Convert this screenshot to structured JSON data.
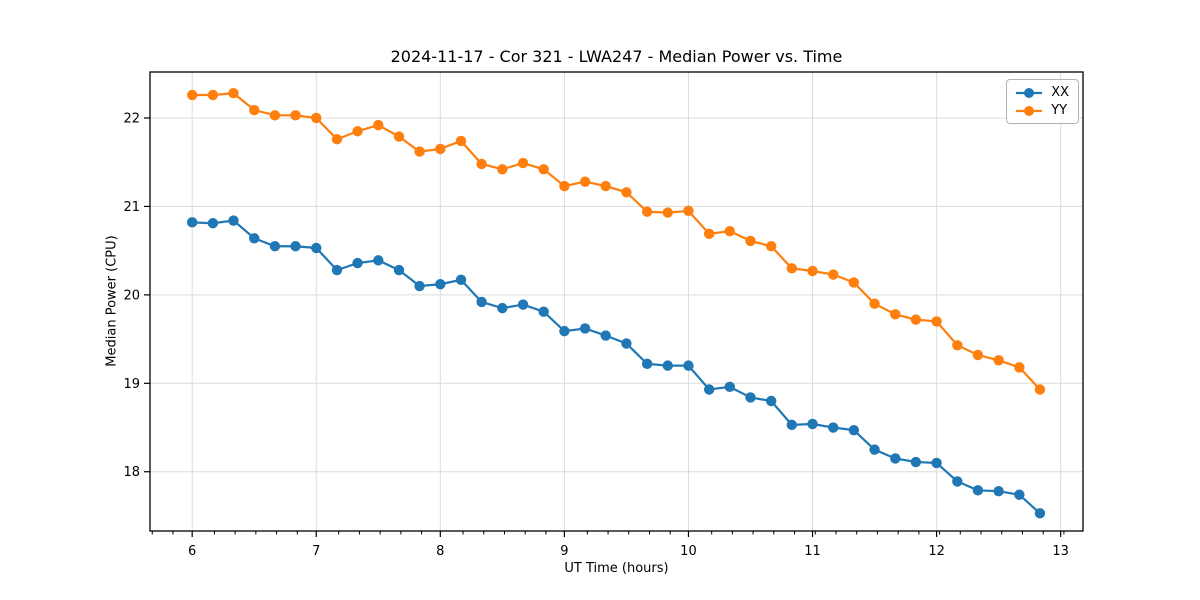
{
  "chart_data": {
    "type": "line",
    "title": "2024-11-17 - Cor 321 - LWA247 - Median Power vs. Time",
    "xlabel": "UT Time (hours)",
    "ylabel": "Median Power (CPU)",
    "xlim": [
      5.66,
      13.18
    ],
    "ylim": [
      17.33,
      22.52
    ],
    "xticks": [
      6,
      7,
      8,
      9,
      10,
      11,
      12,
      13
    ],
    "yticks": [
      18,
      19,
      20,
      21,
      22
    ],
    "x_minor_tick_step": 0.167,
    "grid": true,
    "grid_color": "#dcdcdc",
    "axis_color": "#000000",
    "legend_position": "upper right",
    "x": [
      6.0,
      6.167,
      6.333,
      6.5,
      6.667,
      6.833,
      7.0,
      7.167,
      7.333,
      7.5,
      7.667,
      7.833,
      8.0,
      8.167,
      8.333,
      8.5,
      8.667,
      8.833,
      9.0,
      9.167,
      9.333,
      9.5,
      9.667,
      9.833,
      10.0,
      10.167,
      10.333,
      10.5,
      10.667,
      10.833,
      11.0,
      11.167,
      11.333,
      11.5,
      11.667,
      11.833,
      12.0,
      12.167,
      12.333,
      12.5,
      12.667,
      12.833
    ],
    "series": [
      {
        "name": "XX",
        "color": "#1f77b4",
        "values": [
          20.82,
          20.81,
          20.84,
          20.64,
          20.55,
          20.55,
          20.53,
          20.28,
          20.36,
          20.39,
          20.28,
          20.1,
          20.12,
          20.17,
          19.92,
          19.85,
          19.89,
          19.81,
          19.59,
          19.62,
          19.54,
          19.45,
          19.22,
          19.2,
          19.2,
          18.93,
          18.96,
          18.84,
          18.8,
          18.53,
          18.54,
          18.5,
          18.47,
          18.25,
          18.15,
          18.11,
          18.1,
          17.89,
          17.79,
          17.78,
          17.74,
          17.53
        ]
      },
      {
        "name": "YY",
        "color": "#ff7f0e",
        "values": [
          22.26,
          22.26,
          22.28,
          22.09,
          22.03,
          22.03,
          22.0,
          21.76,
          21.85,
          21.92,
          21.79,
          21.62,
          21.65,
          21.74,
          21.48,
          21.42,
          21.49,
          21.42,
          21.23,
          21.28,
          21.23,
          21.16,
          20.94,
          20.93,
          20.95,
          20.69,
          20.72,
          20.61,
          20.55,
          20.3,
          20.27,
          20.23,
          20.14,
          19.9,
          19.78,
          19.72,
          19.7,
          19.43,
          19.32,
          19.26,
          19.18,
          18.93
        ]
      }
    ]
  }
}
